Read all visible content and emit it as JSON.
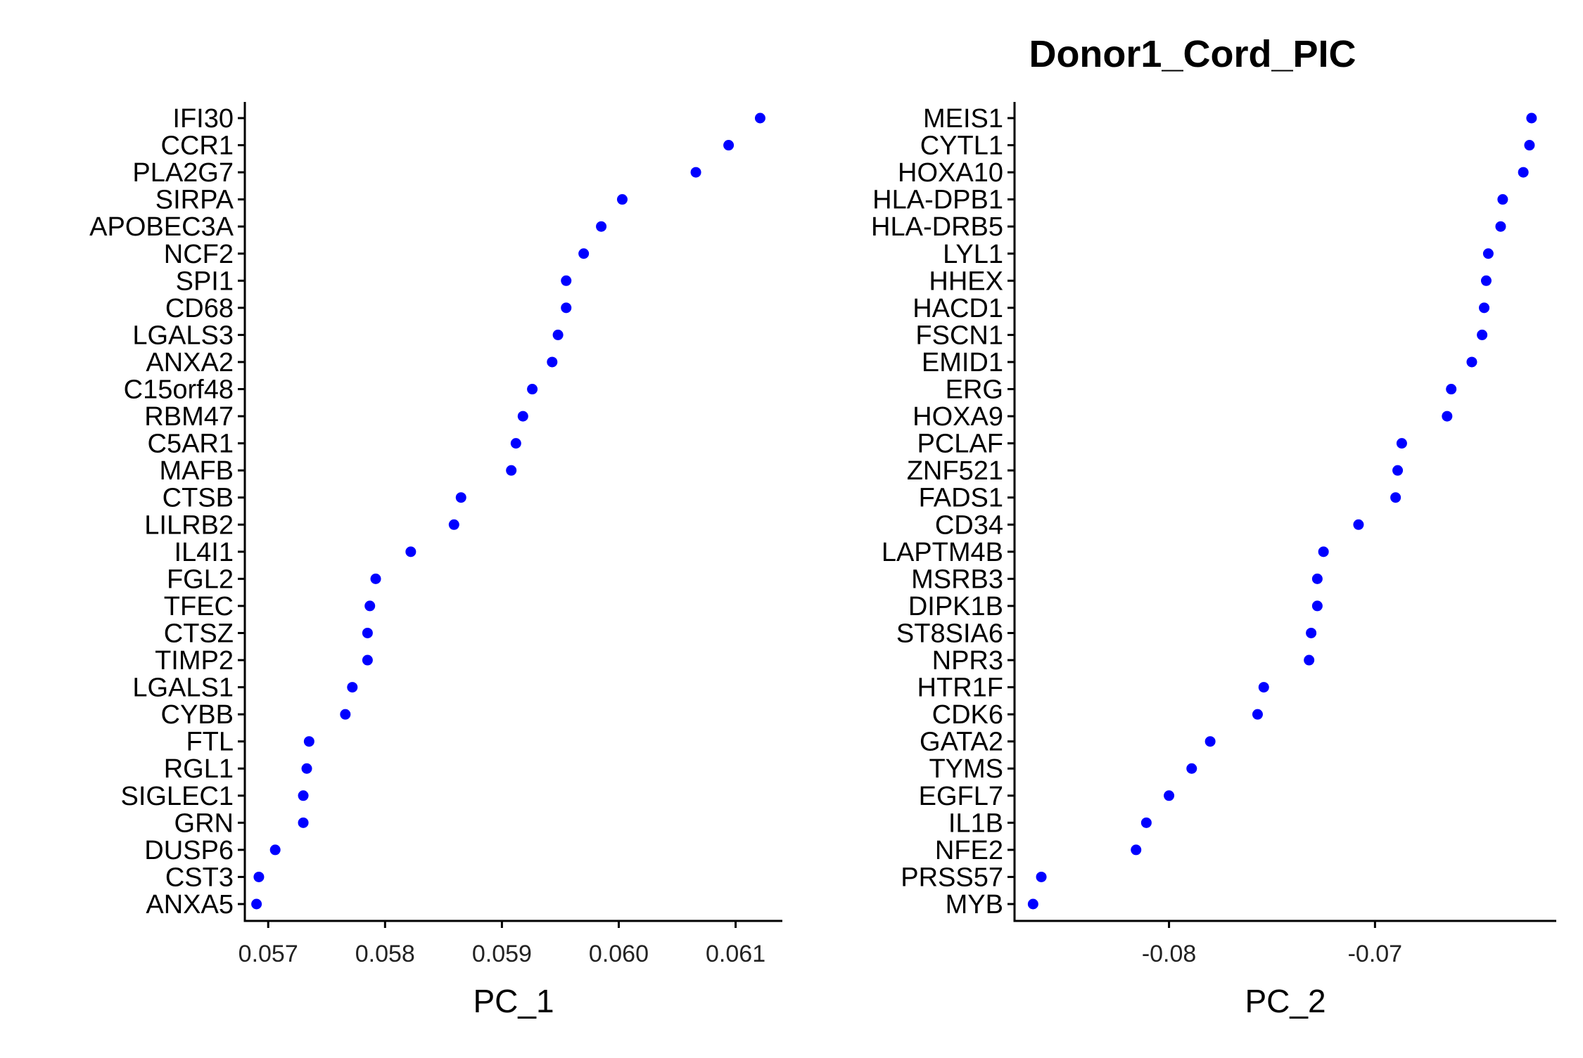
{
  "title": "Donor1_Cord_PIC",
  "point_color": "#0000ff",
  "chart_data": [
    {
      "type": "scatter",
      "xlabel": "PC_1",
      "ylabel": "",
      "xlim": [
        0.0568,
        0.0614
      ],
      "xticks": [
        0.057,
        0.058,
        0.059,
        0.06,
        0.061
      ],
      "xtick_labels": [
        "0.057",
        "0.058",
        "0.059",
        "0.060",
        "0.061"
      ],
      "grid": false,
      "legend": "none",
      "genes": [
        "IFI30",
        "CCR1",
        "PLA2G7",
        "SIRPA",
        "APOBEC3A",
        "NCF2",
        "SPI1",
        "CD68",
        "LGALS3",
        "ANXA2",
        "C15orf48",
        "RBM47",
        "C5AR1",
        "MAFB",
        "CTSB",
        "LILRB2",
        "IL4I1",
        "FGL2",
        "TFEC",
        "CTSZ",
        "TIMP2",
        "LGALS1",
        "CYBB",
        "FTL",
        "RGL1",
        "SIGLEC1",
        "GRN",
        "DUSP6",
        "CST3",
        "ANXA5"
      ],
      "values": [
        0.06121,
        0.06094,
        0.06066,
        0.06003,
        0.05985,
        0.0597,
        0.05955,
        0.05955,
        0.05948,
        0.05943,
        0.05926,
        0.05918,
        0.05912,
        0.05908,
        0.05865,
        0.05859,
        0.05822,
        0.05792,
        0.05787,
        0.05785,
        0.05785,
        0.05772,
        0.05766,
        0.05735,
        0.05733,
        0.0573,
        0.0573,
        0.05706,
        0.05692,
        0.0569
      ]
    },
    {
      "type": "scatter",
      "xlabel": "PC_2",
      "ylabel": "",
      "xlim": [
        -0.0875,
        -0.0612
      ],
      "xticks": [
        -0.08,
        -0.07
      ],
      "xtick_labels": [
        "-0.08",
        "-0.07"
      ],
      "grid": false,
      "legend": "none",
      "genes": [
        "MEIS1",
        "CYTL1",
        "HOXA10",
        "HLA-DPB1",
        "HLA-DRB5",
        "LYL1",
        "HHEX",
        "HACD1",
        "FSCN1",
        "EMID1",
        "ERG",
        "HOXA9",
        "PCLAF",
        "ZNF521",
        "FADS1",
        "CD34",
        "LAPTM4B",
        "MSRB3",
        "DIPK1B",
        "ST8SIA6",
        "NPR3",
        "HTR1F",
        "CDK6",
        "GATA2",
        "TYMS",
        "EGFL7",
        "IL1B",
        "NFE2",
        "PRSS57",
        "MYB"
      ],
      "values": [
        -0.0624,
        -0.0625,
        -0.0628,
        -0.0638,
        -0.0639,
        -0.0645,
        -0.0646,
        -0.0647,
        -0.0648,
        -0.0653,
        -0.0663,
        -0.0665,
        -0.0687,
        -0.0689,
        -0.069,
        -0.0708,
        -0.0725,
        -0.0728,
        -0.0728,
        -0.0731,
        -0.0732,
        -0.0754,
        -0.0757,
        -0.078,
        -0.0789,
        -0.08,
        -0.0811,
        -0.0816,
        -0.0862,
        -0.0866
      ]
    }
  ]
}
